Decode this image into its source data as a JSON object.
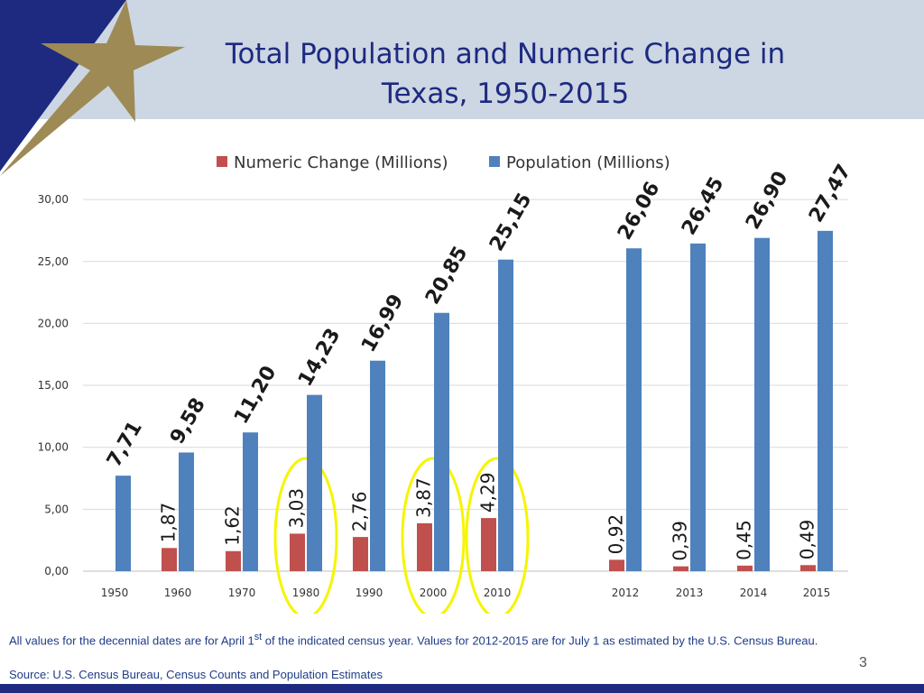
{
  "slide": {
    "title_line1": "Total Population and Numeric Change in",
    "title_line2": "Texas, 1950-2015",
    "footnote_part1": "All values for the decennial dates are for April 1",
    "footnote_sup": "st",
    "footnote_part2": " of the indicated census year.  Values for 2012-2015 are for July 1 as estimated by the U.S. Census Bureau.",
    "source": "Source: U.S. Census Bureau, Census Counts and Population Estimates",
    "page_number": "3"
  },
  "colors": {
    "numeric_change": "#c0504d",
    "population": "#4f81bd",
    "highlight": "#f5f500",
    "header_band": "#cdd6e3",
    "title": "#1d2a80"
  },
  "chart_data": {
    "type": "bar",
    "categories": [
      "1950",
      "1960",
      "1970",
      "1980",
      "1990",
      "2000",
      "2010",
      "2012",
      "2013",
      "2014",
      "2015"
    ],
    "series": [
      {
        "name": "Numeric Change (Millions)",
        "values": [
          null,
          1.87,
          1.62,
          3.03,
          2.76,
          3.87,
          4.29,
          0.92,
          0.39,
          0.45,
          0.49
        ],
        "labels": [
          "",
          "1,87",
          "1,62",
          "3,03",
          "2,76",
          "3,87",
          "4,29",
          "0,92",
          "0,39",
          "0,45",
          "0,49"
        ]
      },
      {
        "name": "Population (Millions)",
        "values": [
          7.71,
          9.58,
          11.2,
          14.23,
          16.99,
          20.85,
          25.15,
          26.06,
          26.45,
          26.9,
          27.47
        ],
        "labels": [
          "7,71",
          "9,58",
          "11,20",
          "14,23",
          "16,99",
          "20,85",
          "25,15",
          "26,06",
          "26,45",
          "26,90",
          "27,47"
        ]
      }
    ],
    "ylim": [
      0,
      30
    ],
    "yticks": [
      0,
      5,
      10,
      15,
      20,
      25,
      30
    ],
    "ytick_labels": [
      "0,00",
      "5,00",
      "10,00",
      "15,00",
      "20,00",
      "25,00",
      "30,00"
    ],
    "legend_position": "top-center",
    "grid": true,
    "highlighted_categories": [
      "1980",
      "2000",
      "2010"
    ]
  }
}
